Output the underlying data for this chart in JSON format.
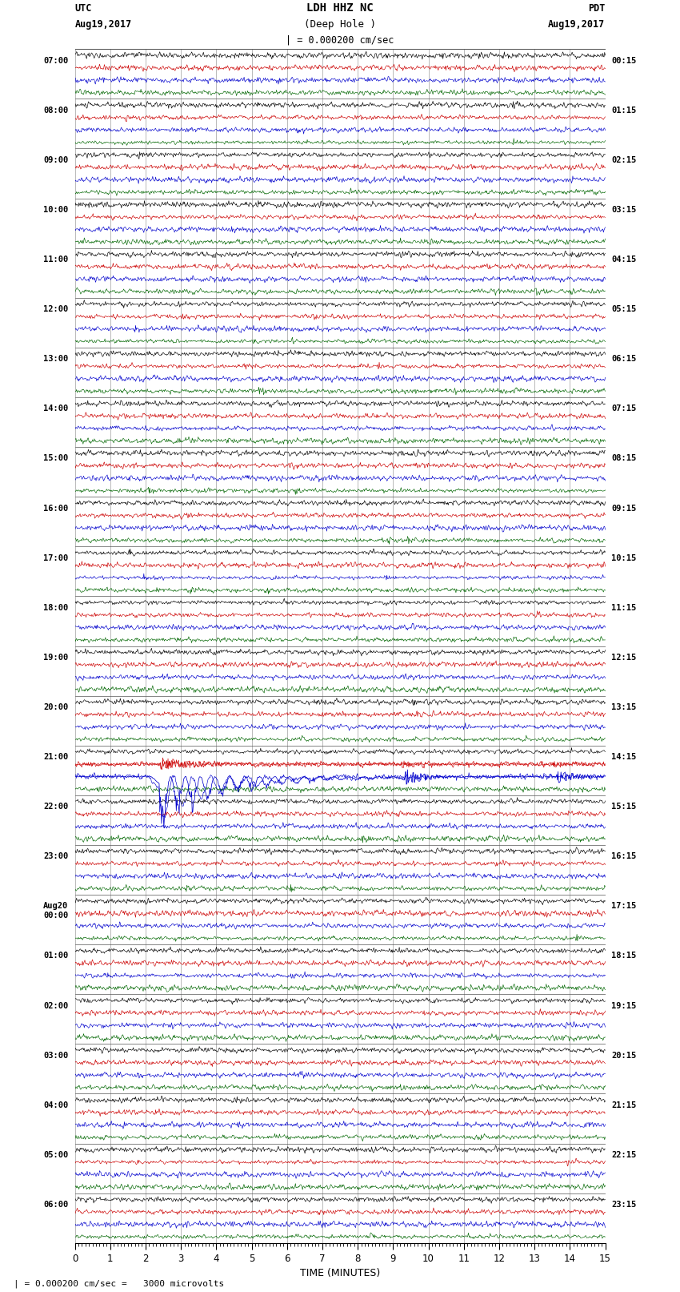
{
  "title_line1": "LDH HHZ NC",
  "title_line2": "(Deep Hole )",
  "scale_label": "| = 0.000200 cm/sec",
  "footer_label": "| = 0.000200 cm/sec =   3000 microvolts",
  "xlabel": "TIME (MINUTES)",
  "xlim": [
    0,
    15
  ],
  "bg_color": "#ffffff",
  "trace_colors": [
    "#000000",
    "#cc0000",
    "#0000cc",
    "#006600"
  ],
  "grid_color": "#888888",
  "grid_linewidth": 0.4,
  "trace_linewidth": 0.45,
  "fig_width": 8.5,
  "fig_height": 16.13,
  "dpi": 100,
  "left_times": [
    "07:00",
    "08:00",
    "09:00",
    "10:00",
    "11:00",
    "12:00",
    "13:00",
    "14:00",
    "15:00",
    "16:00",
    "17:00",
    "18:00",
    "19:00",
    "20:00",
    "21:00",
    "22:00",
    "23:00",
    "Aug20\n00:00",
    "01:00",
    "02:00",
    "03:00",
    "04:00",
    "05:00",
    "06:00"
  ],
  "right_times": [
    "00:15",
    "01:15",
    "02:15",
    "03:15",
    "04:15",
    "05:15",
    "06:15",
    "07:15",
    "08:15",
    "09:15",
    "10:15",
    "11:15",
    "12:15",
    "13:15",
    "14:15",
    "15:15",
    "16:15",
    "17:15",
    "18:15",
    "19:15",
    "20:15",
    "21:15",
    "22:15",
    "23:15"
  ],
  "num_hour_groups": 24,
  "traces_per_group": 4,
  "noise_std": [
    0.12,
    0.15,
    0.13,
    0.18
  ],
  "event_group": 14,
  "event_time": 2.4,
  "minute_gridlines": [
    0,
    1,
    2,
    3,
    4,
    5,
    6,
    7,
    8,
    9,
    10,
    11,
    12,
    13,
    14,
    15
  ]
}
